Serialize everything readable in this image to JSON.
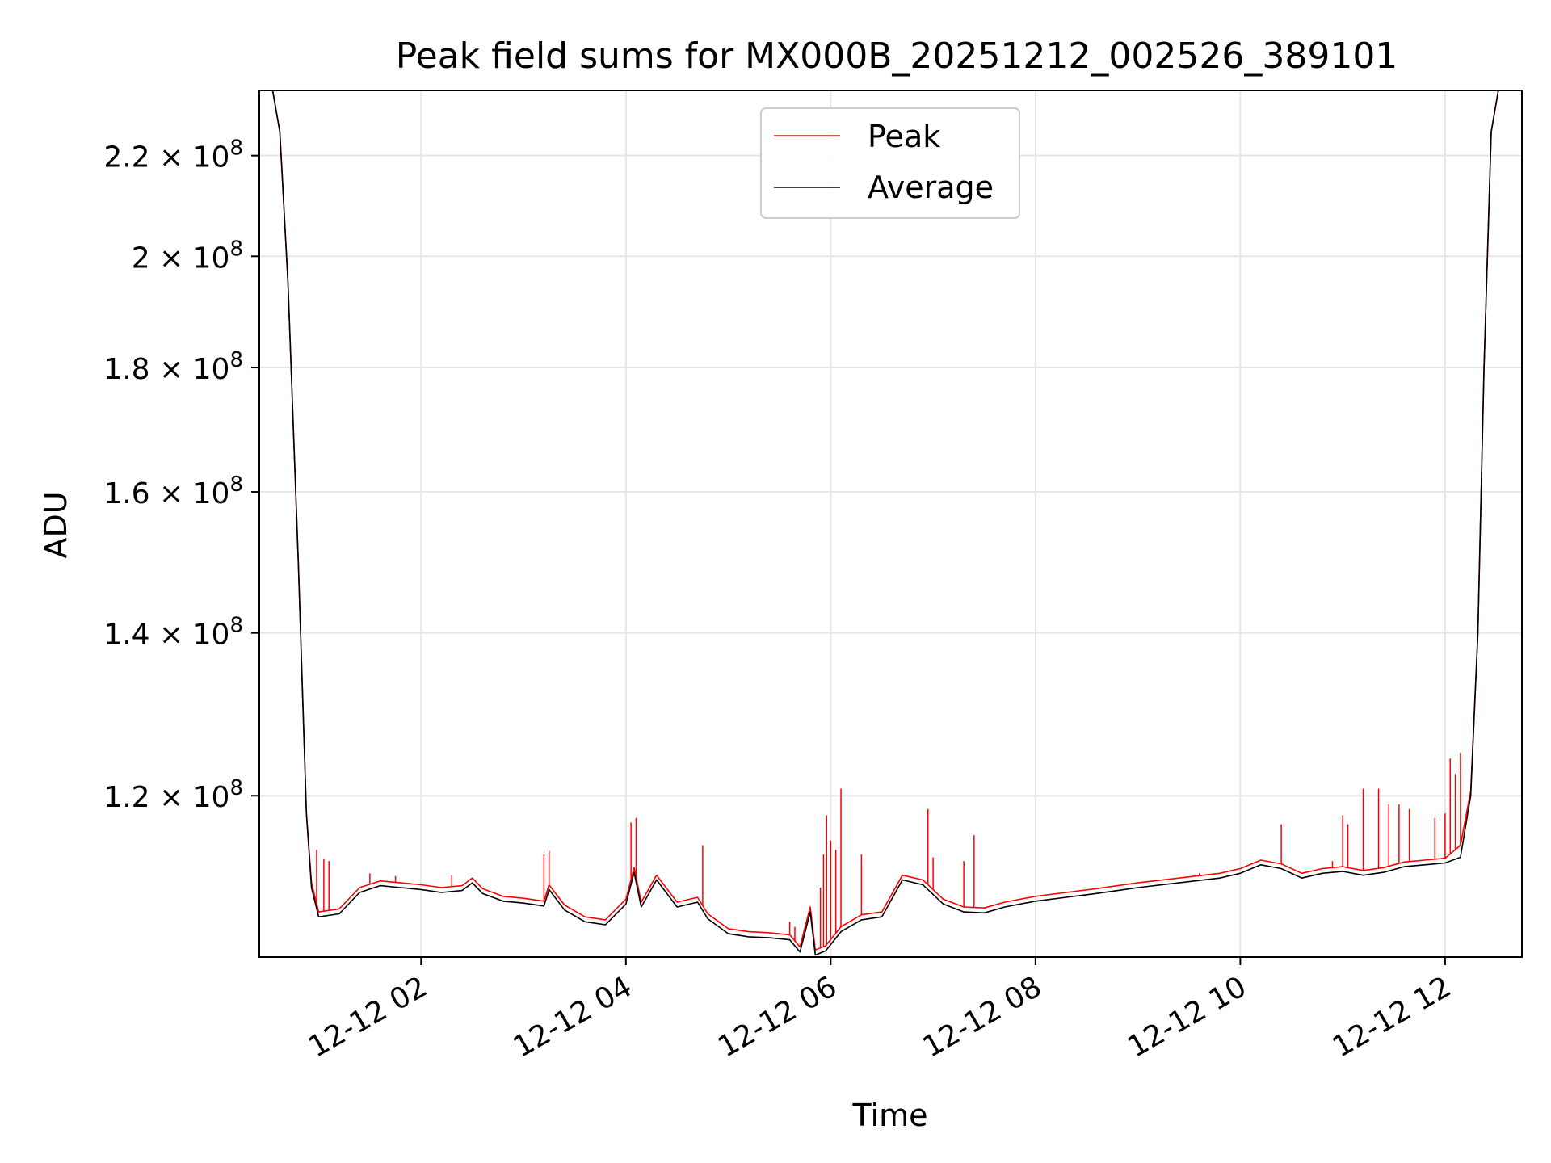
{
  "chart_data": {
    "type": "line",
    "title": "Peak field sums for MX000B_20251212_002526_389101",
    "xlabel": "Time",
    "ylabel": "ADU",
    "yscale": "log",
    "xlim": [
      0.42,
      12.75
    ],
    "ylim": [
      103000000,
      234000000
    ],
    "grid": true,
    "legend_position": "upper center",
    "y_ticks": [
      {
        "value": 120000000,
        "label": "1.2",
        "exp": "8"
      },
      {
        "value": 140000000,
        "label": "1.4",
        "exp": "8"
      },
      {
        "value": 160000000,
        "label": "1.6",
        "exp": "8"
      },
      {
        "value": 180000000,
        "label": "1.8",
        "exp": "8"
      },
      {
        "value": 200000000,
        "label": "2",
        "exp": "8"
      },
      {
        "value": 220000000,
        "label": "2.2",
        "exp": "8"
      }
    ],
    "y_tick_mult": "× 10",
    "x_ticks": [
      {
        "value": 2,
        "label": "12-12 02"
      },
      {
        "value": 4,
        "label": "12-12 04"
      },
      {
        "value": 6,
        "label": "12-12 06"
      },
      {
        "value": 8,
        "label": "12-12 08"
      },
      {
        "value": 10,
        "label": "12-12 10"
      },
      {
        "value": 12,
        "label": "12-12 12"
      }
    ],
    "series": [
      {
        "name": "Average",
        "color": "#000000",
        "points": [
          [
            0.42,
            234000000
          ],
          [
            0.55,
            234000000
          ],
          [
            0.62,
            225000000
          ],
          [
            0.7,
            195000000
          ],
          [
            0.8,
            150000000
          ],
          [
            0.88,
            118000000
          ],
          [
            0.93,
            110000000
          ],
          [
            1.0,
            107000000
          ],
          [
            1.2,
            107300000
          ],
          [
            1.4,
            109500000
          ],
          [
            1.6,
            110200000
          ],
          [
            1.8,
            110000000
          ],
          [
            2.0,
            109800000
          ],
          [
            2.2,
            109500000
          ],
          [
            2.4,
            109700000
          ],
          [
            2.5,
            110500000
          ],
          [
            2.6,
            109400000
          ],
          [
            2.8,
            108600000
          ],
          [
            3.0,
            108400000
          ],
          [
            3.2,
            108100000
          ],
          [
            3.25,
            109800000
          ],
          [
            3.4,
            107700000
          ],
          [
            3.6,
            106500000
          ],
          [
            3.8,
            106200000
          ],
          [
            4.0,
            108300000
          ],
          [
            4.08,
            111600000
          ],
          [
            4.15,
            108000000
          ],
          [
            4.3,
            110800000
          ],
          [
            4.5,
            108000000
          ],
          [
            4.7,
            108500000
          ],
          [
            4.8,
            106800000
          ],
          [
            5.0,
            105300000
          ],
          [
            5.2,
            105000000
          ],
          [
            5.4,
            104900000
          ],
          [
            5.6,
            104700000
          ],
          [
            5.7,
            103500000
          ],
          [
            5.8,
            107500000
          ],
          [
            5.85,
            103200000
          ],
          [
            5.95,
            103600000
          ],
          [
            6.1,
            105500000
          ],
          [
            6.3,
            106700000
          ],
          [
            6.5,
            107000000
          ],
          [
            6.7,
            110800000
          ],
          [
            6.9,
            110300000
          ],
          [
            7.1,
            108300000
          ],
          [
            7.3,
            107500000
          ],
          [
            7.5,
            107400000
          ],
          [
            7.7,
            108000000
          ],
          [
            8.0,
            108600000
          ],
          [
            8.3,
            109000000
          ],
          [
            8.6,
            109400000
          ],
          [
            9.0,
            110000000
          ],
          [
            9.4,
            110500000
          ],
          [
            9.8,
            111000000
          ],
          [
            10.0,
            111500000
          ],
          [
            10.2,
            112400000
          ],
          [
            10.4,
            112000000
          ],
          [
            10.6,
            111000000
          ],
          [
            10.8,
            111500000
          ],
          [
            11.0,
            111700000
          ],
          [
            11.2,
            111300000
          ],
          [
            11.4,
            111600000
          ],
          [
            11.6,
            112200000
          ],
          [
            11.8,
            112400000
          ],
          [
            12.0,
            112600000
          ],
          [
            12.15,
            113200000
          ],
          [
            12.25,
            120000000
          ],
          [
            12.32,
            140000000
          ],
          [
            12.38,
            180000000
          ],
          [
            12.45,
            225000000
          ],
          [
            12.52,
            234000000
          ],
          [
            12.75,
            234000000
          ]
        ]
      },
      {
        "name": "Peak",
        "color": "#ff0000",
        "points": [
          [
            0.42,
            234000000
          ],
          [
            0.55,
            234000000
          ],
          [
            0.62,
            225000000
          ],
          [
            0.7,
            195000000
          ],
          [
            0.8,
            150000000
          ],
          [
            0.88,
            118000000
          ],
          [
            0.93,
            110500000
          ],
          [
            1.0,
            107500000
          ],
          [
            1.2,
            107800000
          ],
          [
            1.4,
            110000000
          ],
          [
            1.6,
            110700000
          ],
          [
            1.8,
            110500000
          ],
          [
            2.0,
            110300000
          ],
          [
            2.2,
            110000000
          ],
          [
            2.4,
            110200000
          ],
          [
            2.5,
            111000000
          ],
          [
            2.6,
            109900000
          ],
          [
            2.8,
            109100000
          ],
          [
            3.0,
            108900000
          ],
          [
            3.2,
            108600000
          ],
          [
            3.25,
            110300000
          ],
          [
            3.4,
            108200000
          ],
          [
            3.6,
            107000000
          ],
          [
            3.8,
            106700000
          ],
          [
            4.0,
            108800000
          ],
          [
            4.08,
            112100000
          ],
          [
            4.15,
            108500000
          ],
          [
            4.3,
            111300000
          ],
          [
            4.5,
            108500000
          ],
          [
            4.7,
            109000000
          ],
          [
            4.8,
            107300000
          ],
          [
            5.0,
            105800000
          ],
          [
            5.2,
            105500000
          ],
          [
            5.4,
            105400000
          ],
          [
            5.6,
            105200000
          ],
          [
            5.7,
            104000000
          ],
          [
            5.8,
            108000000
          ],
          [
            5.85,
            103700000
          ],
          [
            5.95,
            104100000
          ],
          [
            6.1,
            106000000
          ],
          [
            6.3,
            107200000
          ],
          [
            6.5,
            107500000
          ],
          [
            6.7,
            111300000
          ],
          [
            6.9,
            110800000
          ],
          [
            7.1,
            108800000
          ],
          [
            7.3,
            108000000
          ],
          [
            7.5,
            107900000
          ],
          [
            7.7,
            108500000
          ],
          [
            8.0,
            109100000
          ],
          [
            8.3,
            109500000
          ],
          [
            8.6,
            109900000
          ],
          [
            9.0,
            110500000
          ],
          [
            9.4,
            111000000
          ],
          [
            9.8,
            111500000
          ],
          [
            10.0,
            112000000
          ],
          [
            10.2,
            112900000
          ],
          [
            10.4,
            112500000
          ],
          [
            10.6,
            111500000
          ],
          [
            10.8,
            112000000
          ],
          [
            11.0,
            112200000
          ],
          [
            11.2,
            111800000
          ],
          [
            11.4,
            112100000
          ],
          [
            11.6,
            112700000
          ],
          [
            11.8,
            112900000
          ],
          [
            12.0,
            113100000
          ],
          [
            12.15,
            114500000
          ],
          [
            12.25,
            120500000
          ],
          [
            12.32,
            140000000
          ],
          [
            12.38,
            180000000
          ],
          [
            12.45,
            225000000
          ],
          [
            12.52,
            234000000
          ],
          [
            12.75,
            234000000
          ]
        ],
        "spikes": [
          [
            0.98,
            114000000
          ],
          [
            1.05,
            113000000
          ],
          [
            1.1,
            112800000
          ],
          [
            1.5,
            111500000
          ],
          [
            1.75,
            111200000
          ],
          [
            2.3,
            111300000
          ],
          [
            3.2,
            113500000
          ],
          [
            3.25,
            113900000
          ],
          [
            4.05,
            117000000
          ],
          [
            4.1,
            117500000
          ],
          [
            4.75,
            114500000
          ],
          [
            5.6,
            106500000
          ],
          [
            5.65,
            106000000
          ],
          [
            5.9,
            110000000
          ],
          [
            5.93,
            113500000
          ],
          [
            5.96,
            117800000
          ],
          [
            6.0,
            115000000
          ],
          [
            6.05,
            114000000
          ],
          [
            6.1,
            120800000
          ],
          [
            6.3,
            113500000
          ],
          [
            6.95,
            118500000
          ],
          [
            7.0,
            113200000
          ],
          [
            7.3,
            112800000
          ],
          [
            7.4,
            115600000
          ],
          [
            9.6,
            111500000
          ],
          [
            10.4,
            116800000
          ],
          [
            10.9,
            112800000
          ],
          [
            11.0,
            117800000
          ],
          [
            11.05,
            116800000
          ],
          [
            11.2,
            120800000
          ],
          [
            11.35,
            120800000
          ],
          [
            11.45,
            119000000
          ],
          [
            11.55,
            119000000
          ],
          [
            11.65,
            118500000
          ],
          [
            11.9,
            117500000
          ],
          [
            12.0,
            118000000
          ],
          [
            12.05,
            124300000
          ],
          [
            12.1,
            122500000
          ],
          [
            12.15,
            125000000
          ]
        ]
      }
    ]
  }
}
